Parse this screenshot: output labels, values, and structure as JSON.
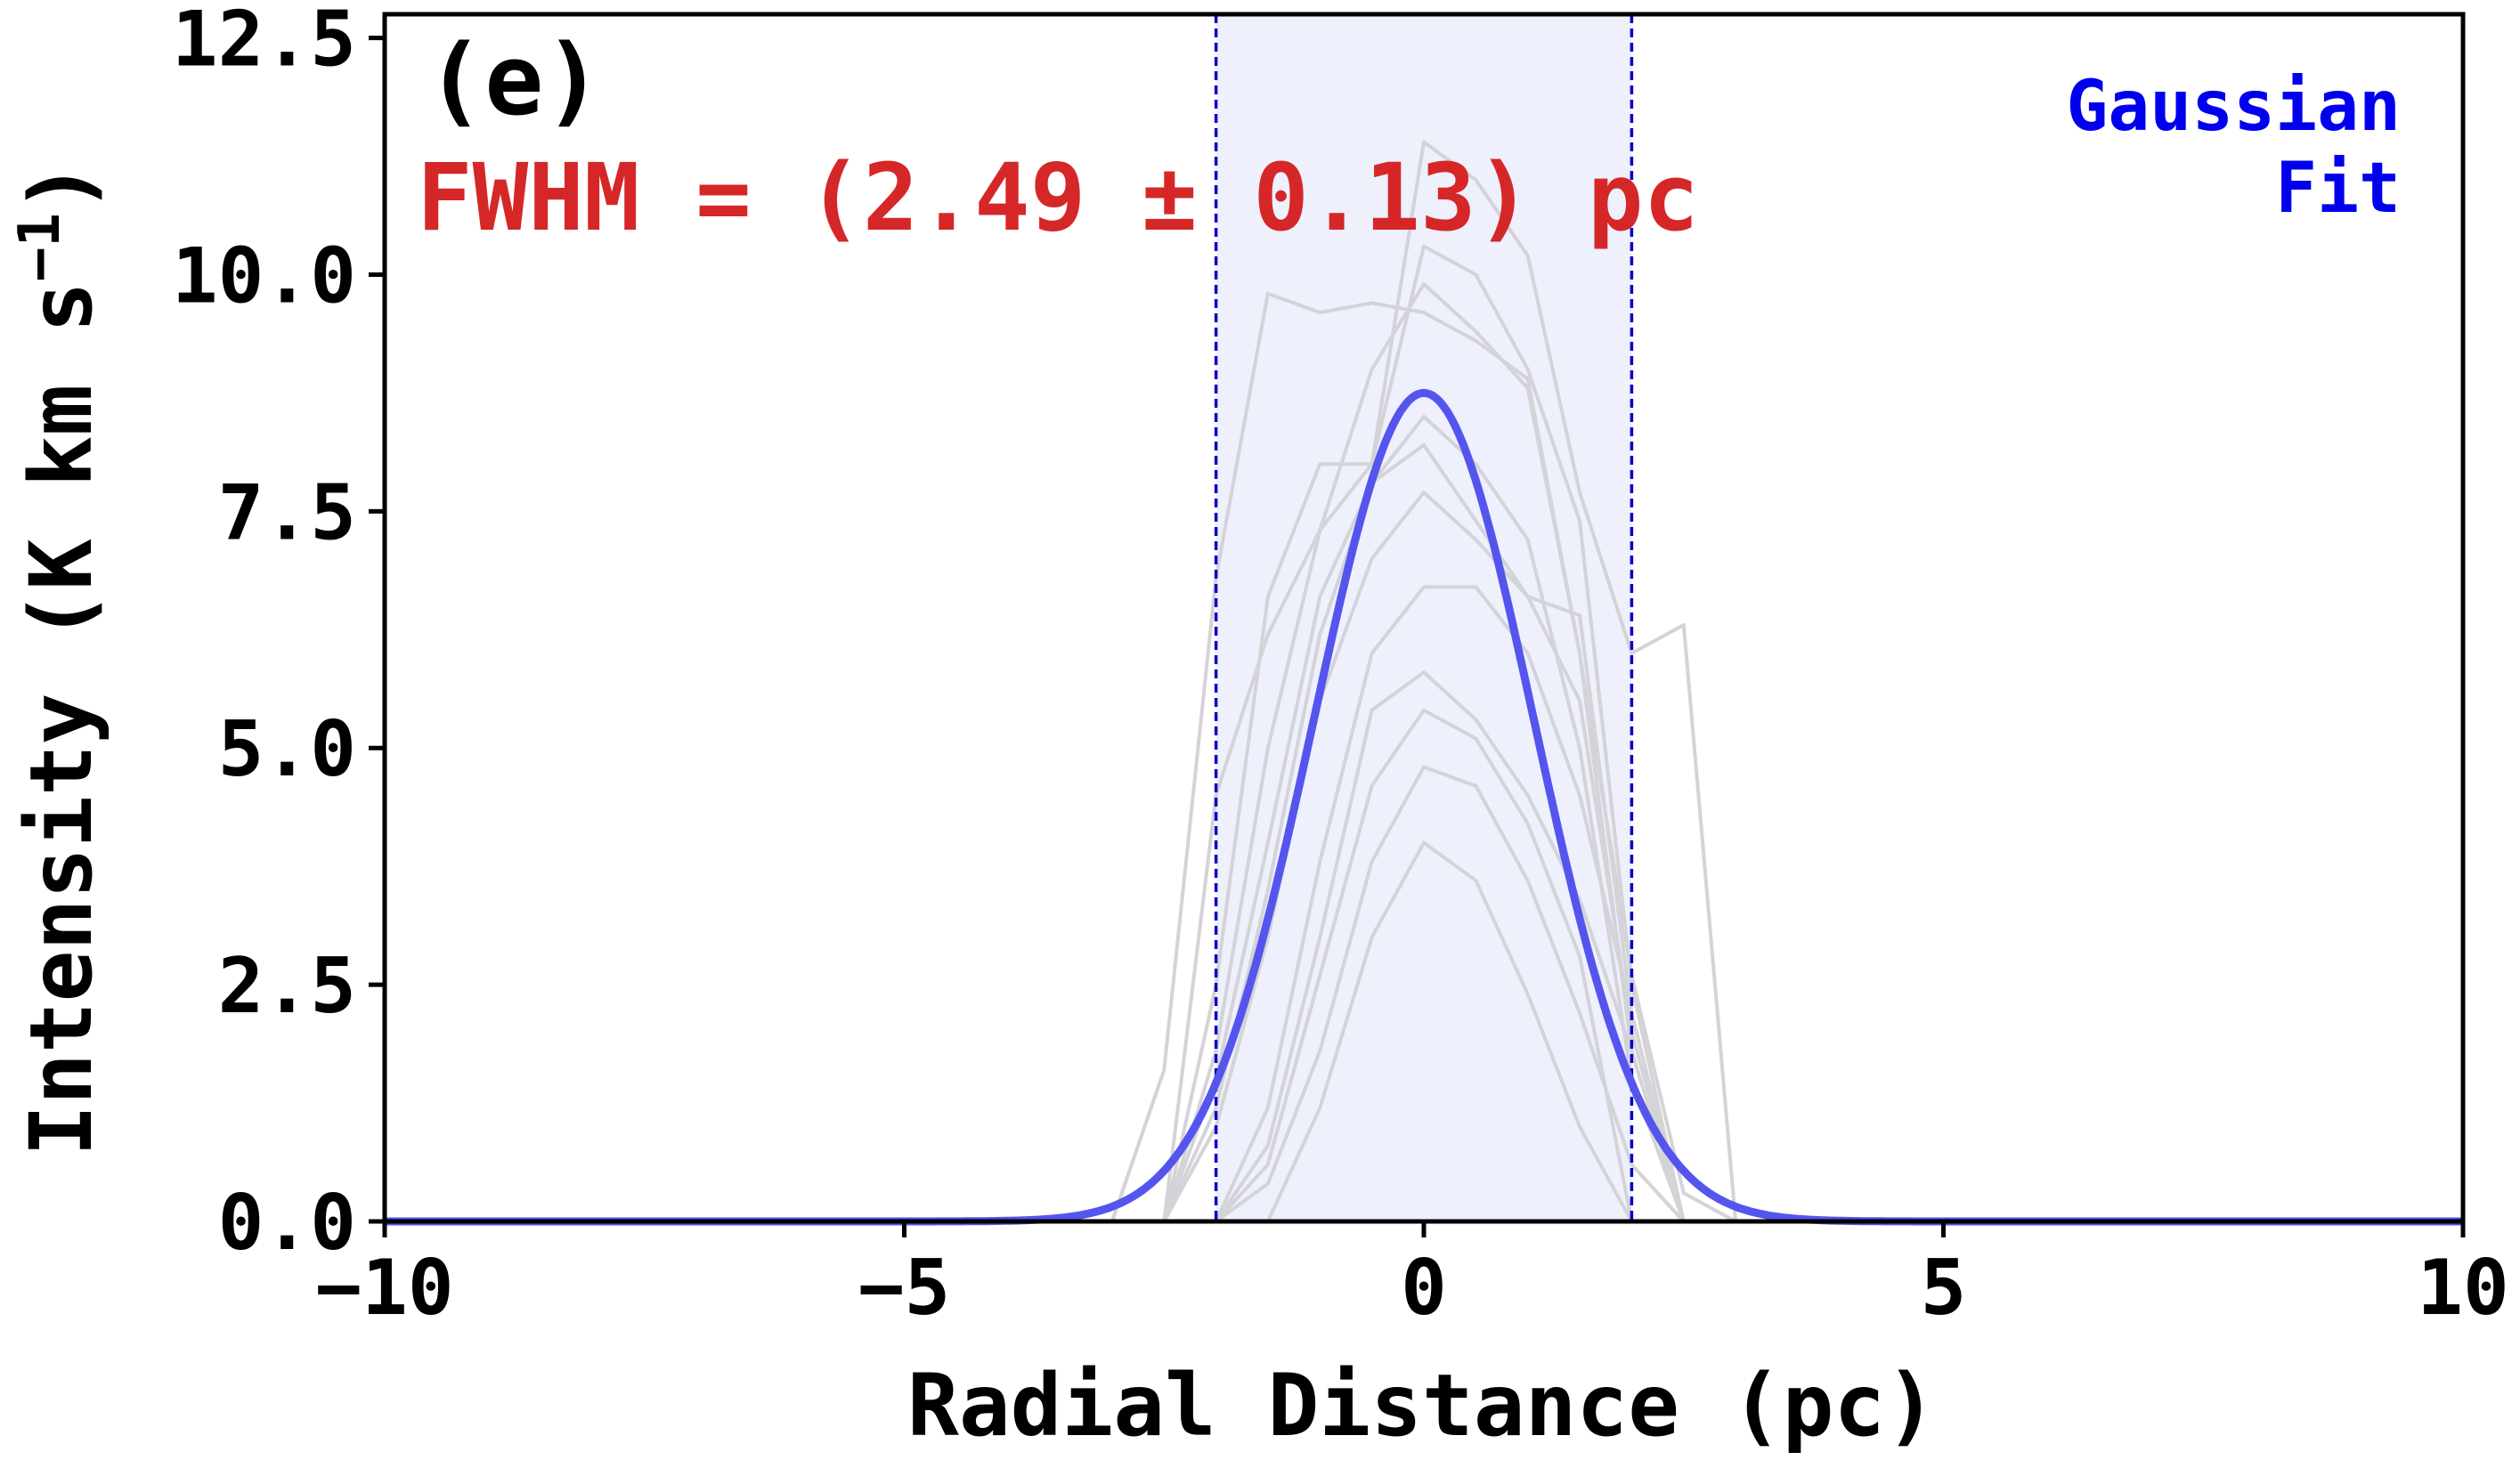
{
  "chart_data": {
    "type": "line",
    "panel_label": "(e)",
    "annotation": "FWHM = (2.49 ± 0.13) pc",
    "annotation_color": "#d62728",
    "legend": {
      "lines": [
        "Gaussian",
        "Fit"
      ],
      "color": "#0000ee",
      "placement": "top-right"
    },
    "xlabel": "Radial Distance (pc)",
    "ylabel": "Intensity (K km s",
    "ylabel_sup": "−1",
    "ylabel_close": ")",
    "xlim": [
      -10,
      10
    ],
    "ylim": [
      0,
      12.75
    ],
    "xticks": [
      -10,
      -5,
      0,
      5,
      10
    ],
    "xtick_labels": [
      "−10",
      "−5",
      "0",
      "5",
      "10"
    ],
    "yticks": [
      0,
      2.5,
      5,
      7.5,
      10,
      12.5
    ],
    "ytick_labels": [
      "0.0",
      "2.5",
      "5.0",
      "7.5",
      "10.0",
      "12.5"
    ],
    "grid": false,
    "shaded_region": {
      "x": [
        -2.0,
        2.0
      ],
      "color": "#eef0fc"
    },
    "vlines": {
      "x": [
        -2.0,
        2.0
      ],
      "color": "#0000cc",
      "style": "dashed"
    },
    "gaussian_fit": {
      "name": "Gaussian Fit",
      "amplitude": 8.75,
      "center": 0,
      "fwhm": 2.49,
      "color": "#5555ee"
    },
    "profile_color": "#d3d3d8",
    "profiles": [
      {
        "x": [
          -3,
          -2.5,
          -2,
          -1.5,
          -1,
          -0.5,
          0,
          0.5,
          1,
          1.5,
          2,
          2.5,
          3
        ],
        "y": [
          0,
          1.6,
          6.8,
          9.8,
          9.6,
          9.7,
          9.6,
          9.3,
          8.9,
          6.0,
          2.6,
          0.3,
          0
        ]
      },
      {
        "x": [
          -2.5,
          -2,
          -1.5,
          -1,
          -0.5,
          0,
          0.5,
          1,
          1.5,
          2,
          2.5,
          3
        ],
        "y": [
          0,
          4.5,
          6.2,
          7.3,
          8.0,
          11.4,
          11.0,
          10.2,
          7.7,
          6.0,
          6.3,
          0
        ]
      },
      {
        "x": [
          -2.5,
          -2,
          -1.5,
          -1,
          -0.5,
          0,
          0.5,
          1,
          1.5,
          2,
          2.5
        ],
        "y": [
          0,
          2.5,
          6.6,
          8.0,
          8.0,
          10.3,
          10.0,
          9.0,
          7.4,
          2.5,
          0
        ]
      },
      {
        "x": [
          -2.5,
          -2,
          -1.5,
          -1,
          -0.5,
          0,
          0.5,
          1,
          1.5,
          2,
          2.5
        ],
        "y": [
          0,
          1.8,
          5.0,
          7.3,
          9.0,
          9.9,
          9.4,
          8.8,
          6.0,
          1.8,
          0
        ]
      },
      {
        "x": [
          -2.5,
          -2,
          -1.5,
          -1,
          -0.5,
          0,
          0.5,
          1,
          1.5,
          2,
          2.5
        ],
        "y": [
          0,
          1.5,
          4.0,
          6.6,
          7.8,
          8.5,
          8.0,
          7.2,
          5.0,
          1.5,
          0
        ]
      },
      {
        "x": [
          -2.5,
          -2,
          -1.5,
          -1,
          -0.5,
          0,
          0.5,
          1,
          1.5,
          2,
          2.5
        ],
        "y": [
          0,
          1.2,
          3.5,
          6.2,
          7.8,
          8.2,
          7.4,
          6.6,
          5.5,
          2.0,
          0
        ]
      },
      {
        "x": [
          -2.5,
          -2,
          -1.5,
          -1,
          -0.5,
          0,
          0.5,
          1,
          1.5,
          2,
          2.5
        ],
        "y": [
          0,
          1.0,
          3.0,
          5.5,
          7.0,
          7.7,
          7.2,
          6.6,
          6.4,
          2.2,
          0
        ]
      },
      {
        "x": [
          -2,
          -1.5,
          -1,
          -0.5,
          0,
          0.5,
          1,
          1.5,
          2,
          2.5
        ],
        "y": [
          0,
          1.2,
          3.8,
          6.0,
          6.7,
          6.7,
          6.0,
          4.5,
          2.2,
          0
        ]
      },
      {
        "x": [
          -2,
          -1.5,
          -1,
          -0.5,
          0,
          0.5,
          1,
          1.5,
          2,
          2.5
        ],
        "y": [
          0,
          0.8,
          3.0,
          5.4,
          5.8,
          5.3,
          4.5,
          3.4,
          1.8,
          0
        ]
      },
      {
        "x": [
          -2,
          -1.5,
          -1,
          -0.5,
          0,
          0.5,
          1,
          1.5,
          2
        ],
        "y": [
          0,
          0.6,
          2.6,
          4.6,
          5.4,
          5.1,
          4.2,
          2.8,
          0
        ]
      },
      {
        "x": [
          -2,
          -1.5,
          -1,
          -0.5,
          0,
          0.5,
          1,
          1.5,
          2,
          2.5
        ],
        "y": [
          0,
          0.4,
          1.8,
          3.8,
          4.8,
          4.6,
          3.6,
          2.2,
          0.6,
          0
        ]
      },
      {
        "x": [
          -1.5,
          -1,
          -0.5,
          0,
          0.5,
          1,
          1.5,
          2
        ],
        "y": [
          0,
          1.2,
          3.0,
          4.0,
          3.6,
          2.4,
          1.0,
          0
        ]
      }
    ]
  }
}
